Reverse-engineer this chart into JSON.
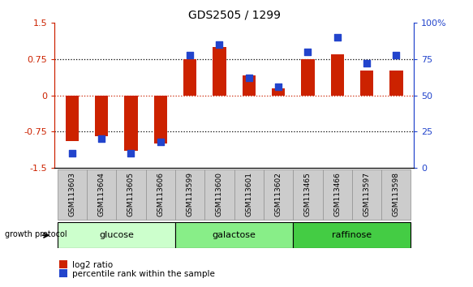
{
  "title": "GDS2505 / 1299",
  "samples": [
    "GSM113603",
    "GSM113604",
    "GSM113605",
    "GSM113606",
    "GSM113599",
    "GSM113600",
    "GSM113601",
    "GSM113602",
    "GSM113465",
    "GSM113466",
    "GSM113597",
    "GSM113598"
  ],
  "log2_ratio": [
    -0.95,
    -0.85,
    -1.15,
    -1.0,
    0.75,
    1.0,
    0.42,
    0.15,
    0.75,
    0.85,
    0.52,
    0.52
  ],
  "percentile_rank": [
    10,
    20,
    10,
    18,
    78,
    85,
    62,
    56,
    80,
    90,
    72,
    78
  ],
  "bar_color": "#cc2200",
  "marker_color": "#2244cc",
  "ylim_left": [
    -1.5,
    1.5
  ],
  "ylim_right": [
    0,
    100
  ],
  "yticks_left": [
    -1.5,
    -0.75,
    0,
    0.75,
    1.5
  ],
  "ytick_labels_left": [
    "-1.5",
    "-0.75",
    "0",
    "0.75",
    "1.5"
  ],
  "yticks_right": [
    0,
    25,
    50,
    75,
    100
  ],
  "ytick_labels_right": [
    "0",
    "25",
    "50",
    "75",
    "100%"
  ],
  "hlines_dotted": [
    0.75,
    -0.75
  ],
  "hline_red_dotted": 0,
  "groups": [
    {
      "label": "glucose",
      "start": 0,
      "end": 4,
      "color": "#ccffcc"
    },
    {
      "label": "galactose",
      "start": 4,
      "end": 8,
      "color": "#88ee88"
    },
    {
      "label": "raffinose",
      "start": 8,
      "end": 12,
      "color": "#44cc44"
    }
  ],
  "group_label": "growth protocol",
  "legend_items": [
    {
      "label": "log2 ratio",
      "color": "#cc2200"
    },
    {
      "label": "percentile rank within the sample",
      "color": "#2244cc"
    }
  ],
  "bar_width": 0.45,
  "marker_size": 40,
  "sample_box_color": "#cccccc",
  "sample_box_edge": "#999999"
}
